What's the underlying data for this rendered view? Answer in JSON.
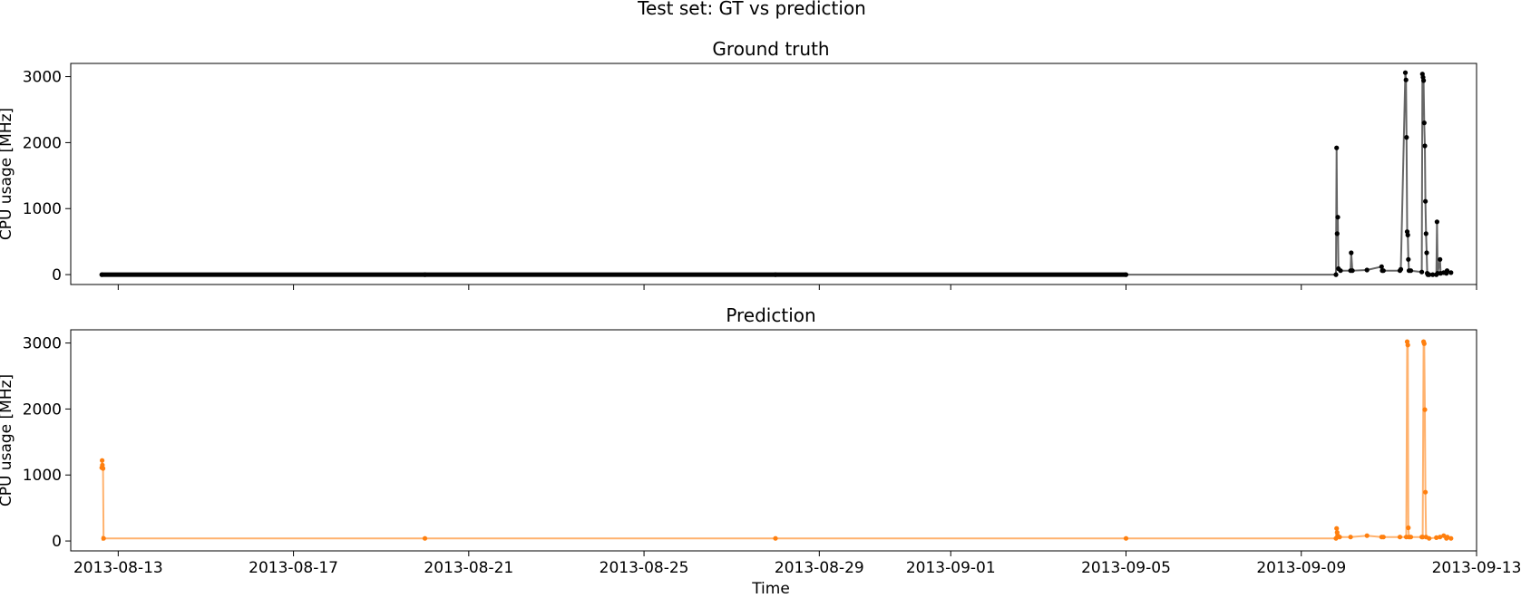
{
  "figure": {
    "suptitle": "Test set: GT vs prediction",
    "xlabel": "Time"
  },
  "x_ticks": [
    "2013-08-13",
    "2013-08-17",
    "2013-08-21",
    "2013-08-25",
    "2013-08-29",
    "2013-09-01",
    "2013-09-05",
    "2013-09-09",
    "2013-09-13"
  ],
  "y_ticks": [
    "0",
    "1000",
    "2000",
    "3000"
  ],
  "chart_data": [
    {
      "type": "line",
      "title": "Ground truth",
      "ylabel": "CPU usage [MHz]",
      "xlabel": "",
      "xlim": [
        "2013-08-11T22:00",
        "2013-09-13T00:00"
      ],
      "ylim": [
        -150,
        3200
      ],
      "markers": true,
      "color": "#000000",
      "series": [
        {
          "x": [
            "2013-08-12T15:00",
            "2013-08-20T00:00",
            "2013-08-28T00:00",
            "2013-09-05T00:00",
            "2013-09-09T19:00",
            "2013-09-09T19:20",
            "2013-09-09T19:40",
            "2013-09-09T20:00",
            "2013-09-09T20:20",
            "2013-09-09T21:30",
            "2013-09-10T03:00",
            "2013-09-10T03:20",
            "2013-09-10T04:00",
            "2013-09-10T12:00",
            "2013-09-10T20:00",
            "2013-09-10T20:20",
            "2013-09-10T21:00",
            "2013-09-11T06:00",
            "2013-09-11T06:30",
            "2013-09-11T09:00",
            "2013-09-11T09:20",
            "2013-09-11T09:40",
            "2013-09-11T10:00",
            "2013-09-11T10:20",
            "2013-09-11T10:40",
            "2013-09-11T11:00",
            "2013-09-11T12:00",
            "2013-09-11T18:00",
            "2013-09-11T18:20",
            "2013-09-11T18:40",
            "2013-09-11T19:00",
            "2013-09-11T19:20",
            "2013-09-11T19:40",
            "2013-09-11T20:00",
            "2013-09-11T20:20",
            "2013-09-11T20:40",
            "2013-09-11T21:00",
            "2013-09-11T21:20",
            "2013-09-11T22:00",
            "2013-09-12T00:00",
            "2013-09-12T02:00",
            "2013-09-12T02:20",
            "2013-09-12T02:40",
            "2013-09-12T04:00",
            "2013-09-12T04:20",
            "2013-09-12T06:00",
            "2013-09-12T07:30",
            "2013-09-12T07:50",
            "2013-09-12T10:00"
          ],
          "values": [
            0,
            0,
            0,
            0,
            0,
            1920,
            620,
            870,
            90,
            60,
            60,
            330,
            60,
            70,
            120,
            60,
            60,
            60,
            80,
            3060,
            2950,
            2080,
            650,
            600,
            230,
            60,
            60,
            40,
            3040,
            2990,
            2940,
            2300,
            1950,
            1110,
            620,
            330,
            20,
            0,
            0,
            0,
            0,
            800,
            20,
            230,
            20,
            30,
            20,
            60,
            30
          ]
        }
      ]
    },
    {
      "type": "line",
      "title": "Prediction",
      "ylabel": "CPU usage [MHz]",
      "xlabel": "Time",
      "xlim": [
        "2013-08-11T22:00",
        "2013-09-13T00:00"
      ],
      "ylim": [
        -150,
        3200
      ],
      "markers": true,
      "color": "#ff7f0e",
      "series": [
        {
          "x": [
            "2013-08-12T15:00",
            "2013-08-12T15:10",
            "2013-08-12T15:20",
            "2013-08-12T15:40",
            "2013-08-12T16:00",
            "2013-08-20T00:00",
            "2013-08-28T00:00",
            "2013-09-05T00:00",
            "2013-09-09T19:00",
            "2013-09-09T19:20",
            "2013-09-09T19:40",
            "2013-09-09T20:00",
            "2013-09-09T21:00",
            "2013-09-10T03:00",
            "2013-09-10T12:00",
            "2013-09-10T20:00",
            "2013-09-10T21:00",
            "2013-09-11T06:00",
            "2013-09-11T09:30",
            "2013-09-11T10:00",
            "2013-09-11T10:20",
            "2013-09-11T10:40",
            "2013-09-11T11:00",
            "2013-09-11T12:00",
            "2013-09-11T18:00",
            "2013-09-11T18:30",
            "2013-09-11T19:00",
            "2013-09-11T19:20",
            "2013-09-11T19:40",
            "2013-09-11T20:00",
            "2013-09-11T20:20",
            "2013-09-11T22:00",
            "2013-09-12T02:00",
            "2013-09-12T04:00",
            "2013-09-12T06:00",
            "2013-09-12T07:30",
            "2013-09-12T08:00",
            "2013-09-12T10:00"
          ],
          "values": [
            1110,
            1220,
            1150,
            1100,
            40,
            40,
            40,
            40,
            40,
            190,
            130,
            80,
            60,
            60,
            80,
            60,
            60,
            60,
            60,
            3020,
            2970,
            200,
            60,
            60,
            60,
            60,
            3020,
            2990,
            1990,
            740,
            60,
            40,
            50,
            60,
            80,
            40,
            60,
            40
          ]
        }
      ]
    }
  ]
}
